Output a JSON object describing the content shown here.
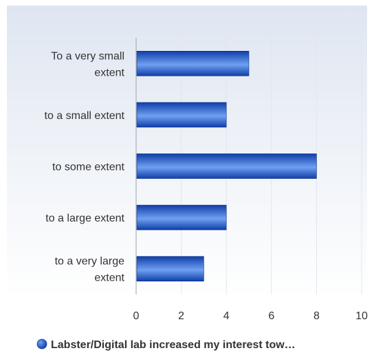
{
  "chart_data": {
    "type": "bar",
    "orientation": "horizontal",
    "categories": [
      "To a very small extent",
      "to a small extent",
      "to some extent",
      "to a large extent",
      "to a very large extent"
    ],
    "category_lines": [
      [
        "To a very small",
        "extent"
      ],
      [
        "to a small extent"
      ],
      [
        "to some extent"
      ],
      [
        "to a large extent"
      ],
      [
        "to a very large",
        "extent"
      ]
    ],
    "series": [
      {
        "name": "Labster/Digital lab increased my interest tow…",
        "values": [
          5,
          4,
          8,
          4,
          3
        ],
        "color": "#2a5fc9"
      }
    ],
    "xlim": [
      0,
      10
    ],
    "x_ticks": [
      "0",
      "2",
      "4",
      "6",
      "8",
      "10"
    ],
    "grid": true,
    "legend_position": "bottom",
    "title": "",
    "xlabel": "",
    "ylabel": ""
  },
  "colors": {
    "background_top": "#dfe6f1",
    "background_bottom": "#ffffff",
    "bar_dark": "#0f3ea8",
    "bar_light": "#6fa0f2",
    "grid": "#e2e6ec",
    "axis": "#9aa3ae"
  }
}
